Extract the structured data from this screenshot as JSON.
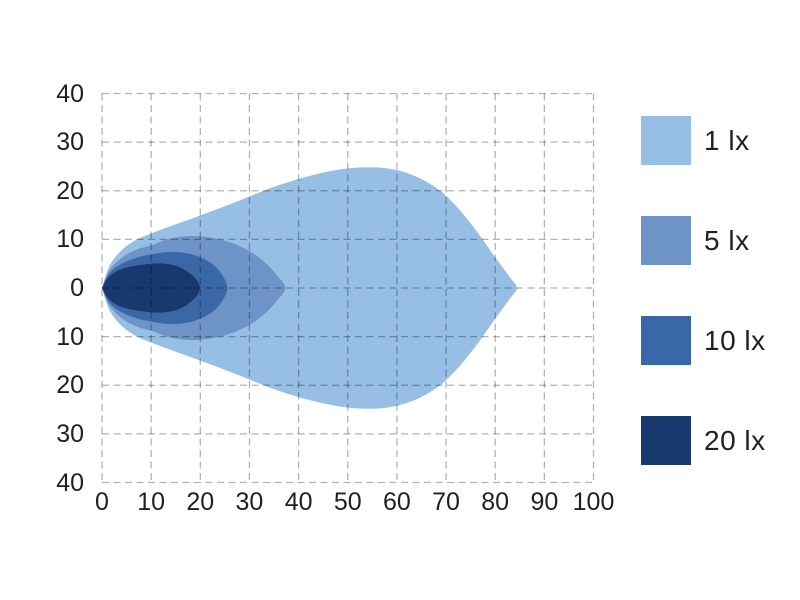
{
  "page": {
    "background_color": "#ffffff",
    "text_color": "#231f20"
  },
  "chart_data": {
    "type": "area",
    "subtype": "isolux_light_distribution_contours",
    "title": "",
    "xlabel": "",
    "ylabel": "",
    "xlim": [
      0,
      100
    ],
    "ylim": [
      -40,
      40
    ],
    "x_ticks": [
      0,
      10,
      20,
      30,
      40,
      50,
      60,
      70,
      80,
      90,
      100
    ],
    "x_tick_labels": [
      "0",
      "10",
      "20",
      "30",
      "40",
      "50",
      "60",
      "70",
      "80",
      "90",
      "100"
    ],
    "y_ticks": [
      40,
      30,
      20,
      10,
      0,
      -10,
      -20,
      -30,
      -40
    ],
    "y_tick_labels": [
      "40",
      "30",
      "20",
      "10",
      "0",
      "10",
      "20",
      "30",
      "40"
    ],
    "grid": {
      "style": "dashed",
      "color": "rgba(0,0,0,0.30)",
      "drawn_above_series": true
    },
    "legend": {
      "position": "right"
    },
    "series": [
      {
        "name": "1 lx",
        "illuminance_lx": 1,
        "color": "#97BEE4",
        "reach": 84.4,
        "max_half_width": 24.8,
        "upper_outline": [
          [
            0,
            0
          ],
          [
            1.5,
            4.5
          ],
          [
            4,
            7.8
          ],
          [
            7,
            9.9
          ],
          [
            10,
            11.2
          ],
          [
            15,
            13.1
          ],
          [
            21,
            15.3
          ],
          [
            28,
            18.0
          ],
          [
            35,
            20.8
          ],
          [
            42,
            23.0
          ],
          [
            48,
            24.3
          ],
          [
            53,
            24.8
          ],
          [
            58,
            24.6
          ],
          [
            63,
            23.3
          ],
          [
            68,
            20.6
          ],
          [
            72,
            16.9
          ],
          [
            76,
            12.0
          ],
          [
            80,
            6.3
          ],
          [
            83,
            2.2
          ],
          [
            84.4,
            0
          ]
        ]
      },
      {
        "name": "5 lx",
        "illuminance_lx": 5,
        "color": "#6E94C7",
        "reach": 37.3,
        "max_half_width": 10.7,
        "upper_outline": [
          [
            0,
            0
          ],
          [
            1.5,
            3.6
          ],
          [
            4,
            6.2
          ],
          [
            7,
            7.9
          ],
          [
            10,
            8.8
          ],
          [
            14,
            10.2
          ],
          [
            18,
            10.7
          ],
          [
            22,
            10.4
          ],
          [
            26,
            9.4
          ],
          [
            30,
            7.6
          ],
          [
            33,
            5.4
          ],
          [
            35.6,
            2.6
          ],
          [
            37.3,
            0
          ]
        ]
      },
      {
        "name": "10 lx",
        "illuminance_lx": 10,
        "color": "#3A67A5",
        "reach": 25.5,
        "max_half_width": 7.5,
        "upper_outline": [
          [
            0,
            0
          ],
          [
            1.5,
            3.0
          ],
          [
            4,
            5.0
          ],
          [
            7,
            6.2
          ],
          [
            10,
            6.9
          ],
          [
            13.5,
            7.4
          ],
          [
            17,
            7.2
          ],
          [
            20,
            6.3
          ],
          [
            22.5,
            4.9
          ],
          [
            24.5,
            2.6
          ],
          [
            25.5,
            0
          ]
        ]
      },
      {
        "name": "20 lx",
        "illuminance_lx": 20,
        "color": "#17396E",
        "reach": 19.9,
        "max_half_width": 5.1,
        "upper_outline": [
          [
            0,
            0
          ],
          [
            1.5,
            2.4
          ],
          [
            4,
            3.9
          ],
          [
            7,
            4.6
          ],
          [
            10,
            5.0
          ],
          [
            13,
            5.0
          ],
          [
            15.5,
            4.4
          ],
          [
            17.5,
            3.3
          ],
          [
            19.2,
            1.7
          ],
          [
            19.9,
            0
          ]
        ]
      }
    ]
  }
}
